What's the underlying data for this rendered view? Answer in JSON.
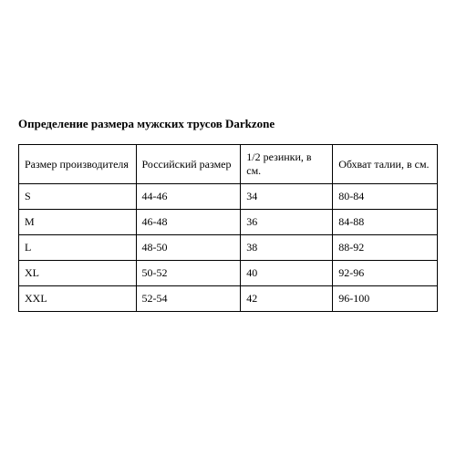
{
  "title": "Определение размера мужских трусов Darkzone",
  "table": {
    "columns": [
      "Размер производителя",
      "Российский размер",
      "1/2 резинки, в см.",
      "Обхват талии, в см."
    ],
    "rows": [
      [
        "S",
        "44-46",
        "34",
        "80-84"
      ],
      [
        "M",
        "46-48",
        "36",
        "84-88"
      ],
      [
        "L",
        "48-50",
        "38",
        "88-92"
      ],
      [
        "XL",
        "50-52",
        "40",
        "92-96"
      ],
      [
        "XXL",
        "52-54",
        "42",
        "96-100"
      ]
    ],
    "column_widths_pct": [
      28,
      25,
      22,
      25
    ],
    "border_color": "#000000",
    "background_color": "#ffffff",
    "text_color": "#000000",
    "cell_fontsize": 12,
    "title_fontsize": 13,
    "title_fontweight": "bold",
    "font_family": "Times New Roman",
    "cell_align": "left"
  }
}
